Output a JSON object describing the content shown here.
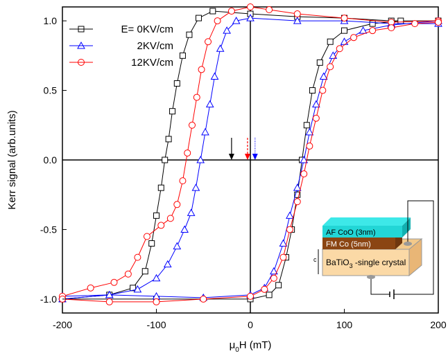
{
  "chart_data": {
    "type": "line",
    "y_label": "Kerr signal (arb.units)",
    "x_label_parts": [
      "μ",
      "0",
      "H (mT)"
    ],
    "xlim": [
      -200,
      200
    ],
    "ylim": [
      -1.1,
      1.1
    ],
    "xticks": [
      -200,
      -100,
      0,
      100,
      200
    ],
    "yticks": [
      {
        "value": -1,
        "label": "-1.0"
      },
      -0.5,
      {
        "value": 0,
        "label": "0.0"
      },
      0.5,
      {
        "value": 1,
        "label": "1.0"
      }
    ],
    "series": [
      {
        "name": "E=  0KV/cm",
        "color": "#000000",
        "marker": "square",
        "x": [
          200,
          150,
          100,
          50,
          0,
          -40,
          -55,
          -65,
          -72,
          -78,
          -83,
          -87,
          -91,
          -95,
          -100,
          -105,
          -112,
          -125,
          -150,
          -200,
          -200,
          -100,
          0,
          20,
          30,
          38,
          44,
          50,
          55,
          60,
          66,
          74,
          85,
          100,
          130,
          160,
          200
        ],
        "values": [
          1.0,
          1.0,
          1.02,
          1.03,
          1.05,
          1.07,
          1.02,
          0.9,
          0.75,
          0.55,
          0.35,
          0.15,
          0,
          -0.2,
          -0.4,
          -0.6,
          -0.8,
          -0.92,
          -0.97,
          -1.0,
          -1.0,
          -1.0,
          -1.0,
          -0.97,
          -0.9,
          -0.7,
          -0.5,
          -0.25,
          0,
          0.25,
          0.5,
          0.7,
          0.85,
          0.93,
          0.98,
          1.0,
          1.0
        ]
      },
      {
        "name": "2KV/cm",
        "color": "#0000ff",
        "marker": "triangle",
        "x": [
          200,
          150,
          100,
          50,
          0,
          -15,
          -25,
          -32,
          -38,
          -43,
          -48,
          -53,
          -58,
          -63,
          -70,
          -78,
          -88,
          -100,
          -120,
          -150,
          -200,
          -200,
          -150,
          -100,
          -50,
          0,
          15,
          25,
          35,
          42,
          50,
          57,
          63,
          70,
          78,
          88,
          100,
          120,
          150,
          200
        ],
        "values": [
          0.98,
          0.98,
          1.0,
          1.0,
          1.02,
          1.0,
          0.93,
          0.8,
          0.6,
          0.4,
          0.2,
          0,
          -0.2,
          -0.38,
          -0.5,
          -0.62,
          -0.75,
          -0.85,
          -0.93,
          -0.97,
          -1.0,
          -0.98,
          -0.97,
          -0.98,
          -0.99,
          -0.97,
          -0.92,
          -0.8,
          -0.6,
          -0.4,
          -0.2,
          0,
          0.2,
          0.4,
          0.6,
          0.75,
          0.85,
          0.93,
          0.97,
          1.0
        ]
      },
      {
        "name": "12KV/cm",
        "color": "#ff0000",
        "marker": "circle",
        "x": [
          200,
          150,
          100,
          50,
          20,
          0,
          -20,
          -35,
          -45,
          -52,
          -57,
          -62,
          -67,
          -72,
          -78,
          -85,
          -95,
          -110,
          -120,
          -130,
          -145,
          -170,
          -200,
          -200,
          -150,
          -100,
          -50,
          0,
          15,
          25,
          35,
          42,
          50,
          57,
          63,
          70,
          77,
          85,
          95,
          110,
          130,
          150,
          175,
          200
        ],
        "values": [
          1.0,
          0.99,
          1.02,
          1.05,
          1.08,
          1.1,
          1.07,
          1.0,
          0.85,
          0.65,
          0.45,
          0.25,
          0.05,
          -0.15,
          -0.32,
          -0.42,
          -0.47,
          -0.55,
          -0.7,
          -0.82,
          -0.88,
          -0.92,
          -0.98,
          -1.0,
          -1.02,
          -1.02,
          -1.0,
          -0.98,
          -0.93,
          -0.85,
          -0.7,
          -0.5,
          -0.3,
          -0.1,
          0.1,
          0.3,
          0.5,
          0.67,
          0.8,
          0.88,
          0.93,
          0.95,
          0.98,
          0.99
        ]
      }
    ],
    "arrows": [
      {
        "x": -20,
        "color": "#000000",
        "style": "solid"
      },
      {
        "x": -3,
        "color": "#ff0000",
        "style": "dashed"
      },
      {
        "x": 5,
        "color": "#0000ff",
        "style": "dotted"
      }
    ],
    "inset": {
      "af": "AF  CoO (3nm)",
      "fm": "FM  Co (5nm)",
      "substrate": [
        "BaTiO",
        "3",
        " -single crystal"
      ],
      "c": "c"
    }
  }
}
